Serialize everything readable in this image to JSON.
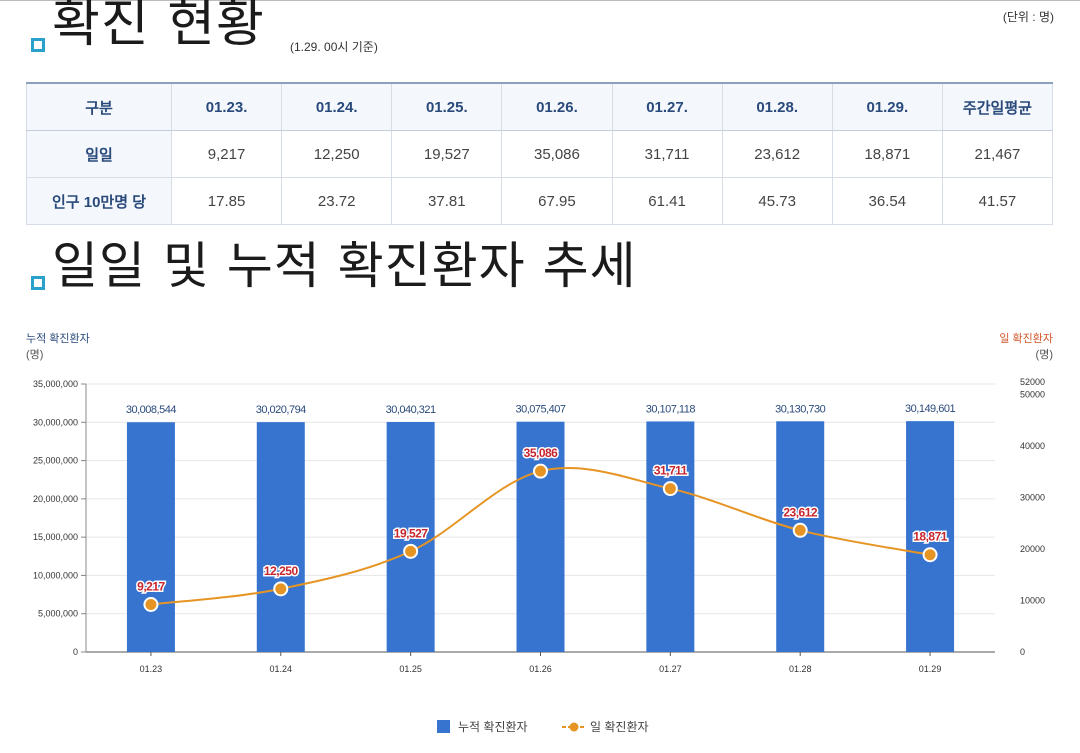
{
  "header": {
    "title": "확진 현황",
    "subtitle": "(1.29. 00시 기준)",
    "unit": "(단위 : 명)"
  },
  "table": {
    "columns": [
      "구분",
      "01.23.",
      "01.24.",
      "01.25.",
      "01.26.",
      "01.27.",
      "01.28.",
      "01.29.",
      "주간일평균"
    ],
    "rows": [
      {
        "label": "일일",
        "cells": [
          "9,217",
          "12,250",
          "19,527",
          "35,086",
          "31,711",
          "23,612",
          "18,871",
          "21,467"
        ]
      },
      {
        "label": "인구 10만명 당",
        "cells": [
          "17.85",
          "23.72",
          "37.81",
          "67.95",
          "61.41",
          "45.73",
          "36.54",
          "41.57"
        ]
      }
    ]
  },
  "section2": {
    "title": "일일 및 누적 확진환자 추세"
  },
  "chart_labels": {
    "left_axis_title": "누적 확진환자",
    "left_axis_unit": "(명)",
    "right_axis_title": "일 확진환자",
    "right_axis_unit": "(명)"
  },
  "legend": {
    "cumulative": "누적 확진환자",
    "daily": "일 확진환자"
  },
  "colors": {
    "bar": "#3674d0",
    "line": "#e69524",
    "point_label": "#c8252c",
    "bar_label": "#2a4a7b",
    "bullet": "#2aa0cc"
  },
  "chart_data": {
    "type": "bar+line",
    "categories": [
      "01.23",
      "01.24",
      "01.25",
      "01.26",
      "01.27",
      "01.28",
      "01.29"
    ],
    "series": [
      {
        "name": "누적 확진환자",
        "type": "bar",
        "axis": "left",
        "values": [
          30008544,
          30020794,
          30040321,
          30075407,
          30107118,
          30130730,
          30149601
        ],
        "labels": [
          "30,008,544",
          "30,020,794",
          "30,040,321",
          "30,075,407",
          "30,107,118",
          "30,130,730",
          "30,149,601"
        ]
      },
      {
        "name": "일 확진환자",
        "type": "line",
        "axis": "right",
        "values": [
          9217,
          12250,
          19527,
          35086,
          31711,
          23612,
          18871
        ],
        "labels": [
          "9,217",
          "12,250",
          "19,527",
          "35,086",
          "31,711",
          "23,612",
          "18,871"
        ]
      }
    ],
    "left_axis": {
      "min": 0,
      "max": 35000000,
      "ticks": [
        0,
        5000000,
        10000000,
        15000000,
        20000000,
        25000000,
        30000000,
        35000000
      ],
      "tick_labels": [
        "0",
        "5,000,000",
        "10,000,000",
        "15,000,000",
        "20,000,000",
        "25,000,000",
        "30,000,000",
        "35,000,000"
      ]
    },
    "right_axis": {
      "min": 0,
      "max": 52000,
      "ticks": [
        0,
        10000,
        20000,
        30000,
        40000,
        50000,
        52000
      ],
      "tick_labels": [
        "0",
        "10000",
        "20000",
        "30000",
        "40000",
        "50000",
        "52000"
      ]
    }
  }
}
